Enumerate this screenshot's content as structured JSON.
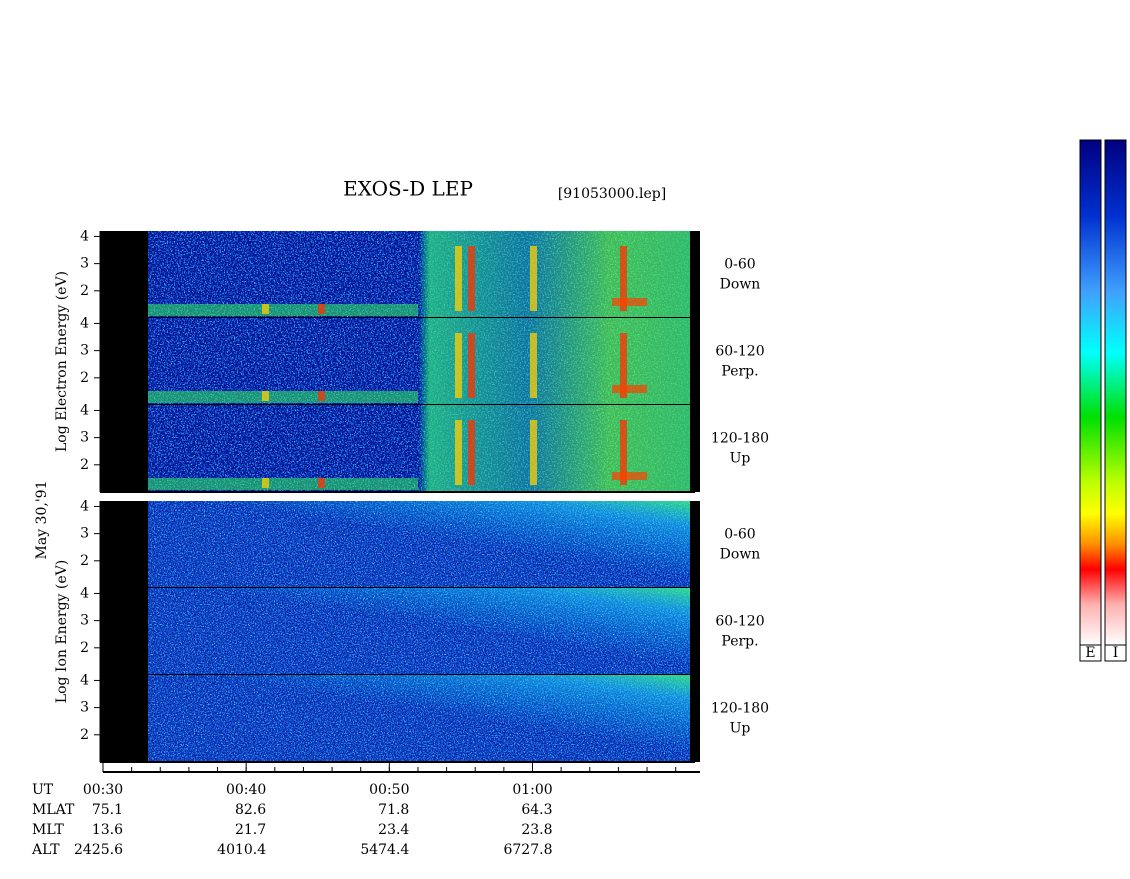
{
  "chart_data": {
    "type": "spectrogram",
    "title": "EXOS-D LEP",
    "file_label": "[91053000.lep]",
    "date_label": "May 30,'91",
    "ylim": [
      1,
      4.2
    ],
    "yticks": [
      2,
      3,
      4
    ],
    "xlim": [
      30,
      71.7
    ],
    "xticks": [
      {
        "value": 30,
        "label": "00:30"
      },
      {
        "value": 40,
        "label": "00:40"
      },
      {
        "value": 50,
        "label": "00:50"
      },
      {
        "value": 60,
        "label": "01:00"
      }
    ],
    "groups": [
      {
        "axis_label": "Log Electron Energy (eV)",
        "panels": [
          {
            "pitch_angle": "0-60",
            "direction": "Down"
          },
          {
            "pitch_angle": "60-120",
            "direction": "Perp."
          },
          {
            "pitch_angle": "120-180",
            "direction": "Up"
          }
        ]
      },
      {
        "axis_label": "Log Ion Energy (eV)",
        "panels": [
          {
            "pitch_angle": "0-60",
            "direction": "Down"
          },
          {
            "pitch_angle": "60-120",
            "direction": "Perp."
          },
          {
            "pitch_angle": "120-180",
            "direction": "Up"
          }
        ]
      }
    ],
    "orbit": {
      "time_name": "UT",
      "rows": [
        {
          "name": "MLAT",
          "values": [
            75.1,
            82.6,
            71.8,
            64.3
          ]
        },
        {
          "name": "MLT",
          "values": [
            13.6,
            21.7,
            23.4,
            23.8
          ]
        },
        {
          "name": "ALT",
          "values": [
            2425.6,
            4010.4,
            5474.4,
            6727.8
          ]
        }
      ]
    },
    "colorbars": [
      "E",
      "I"
    ]
  }
}
